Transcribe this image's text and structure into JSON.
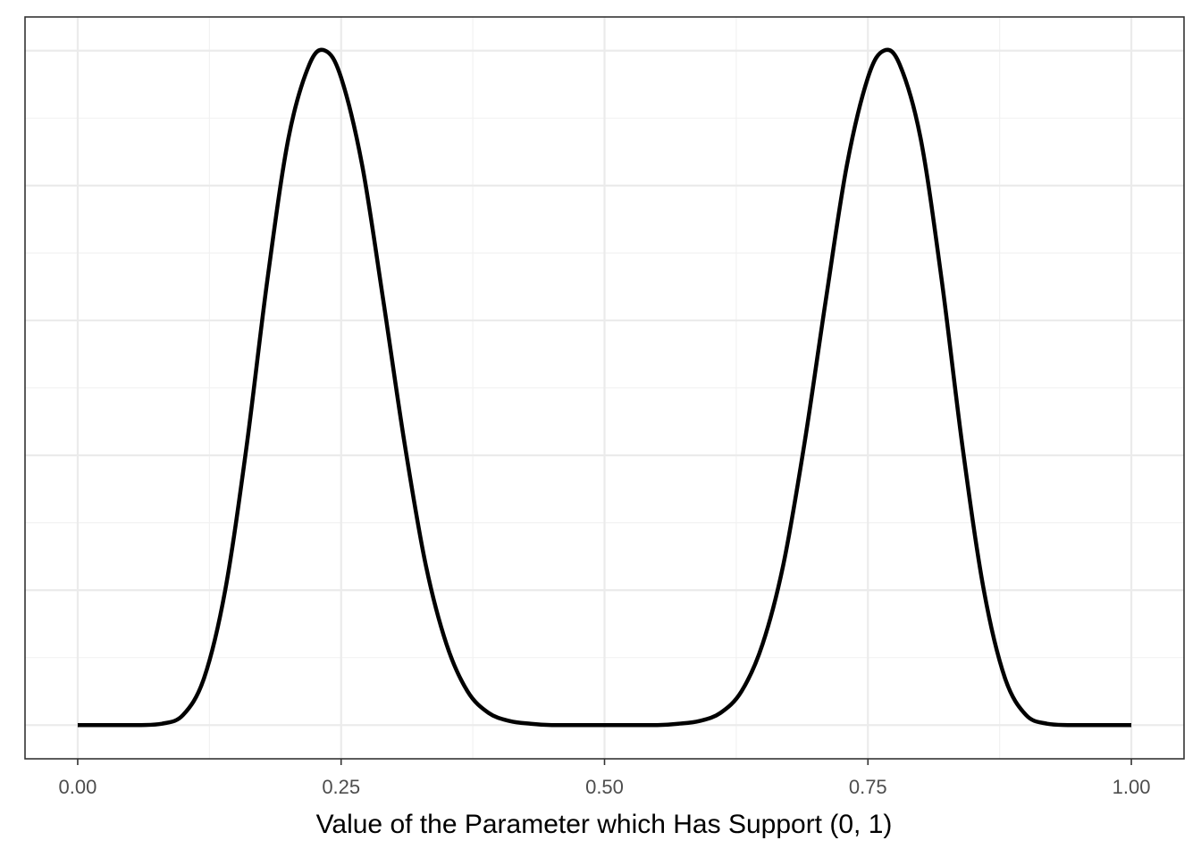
{
  "chart_data": {
    "type": "line",
    "title": "",
    "xlabel": "Value of the Parameter which Has Support (0, 1)",
    "ylabel": "",
    "xlim": [
      0.0,
      1.0
    ],
    "ylim": [
      0.0,
      1.0
    ],
    "x_ticks": [
      0.0,
      0.25,
      0.5,
      0.75,
      1.0
    ],
    "x_tick_labels": [
      "0.00",
      "0.25",
      "0.50",
      "0.75",
      "1.00"
    ],
    "y_tick_labels": [],
    "grid": true,
    "legend": "none",
    "series": [
      {
        "color": "#000000",
        "x": [
          0.0,
          0.02,
          0.04,
          0.06,
          0.08,
          0.1,
          0.12,
          0.14,
          0.16,
          0.18,
          0.2,
          0.22,
          0.235,
          0.25,
          0.27,
          0.29,
          0.31,
          0.33,
          0.35,
          0.37,
          0.39,
          0.41,
          0.43,
          0.45,
          0.47,
          0.5,
          0.53,
          0.55,
          0.57,
          0.59,
          0.61,
          0.63,
          0.65,
          0.67,
          0.69,
          0.71,
          0.73,
          0.75,
          0.765,
          0.78,
          0.8,
          0.82,
          0.84,
          0.86,
          0.88,
          0.9,
          0.92,
          0.94,
          0.96,
          0.98,
          1.0
        ],
        "y": [
          0.0,
          0.0,
          0.0,
          0.0,
          0.002,
          0.015,
          0.07,
          0.2,
          0.41,
          0.66,
          0.87,
          0.98,
          1.0,
          0.96,
          0.83,
          0.63,
          0.42,
          0.24,
          0.12,
          0.05,
          0.018,
          0.006,
          0.002,
          0.0,
          0.0,
          0.0,
          0.0,
          0.0,
          0.002,
          0.006,
          0.018,
          0.05,
          0.12,
          0.24,
          0.42,
          0.63,
          0.83,
          0.96,
          1.0,
          0.98,
          0.87,
          0.66,
          0.41,
          0.2,
          0.07,
          0.015,
          0.002,
          0.0,
          0.0,
          0.0,
          0.0
        ]
      }
    ]
  }
}
